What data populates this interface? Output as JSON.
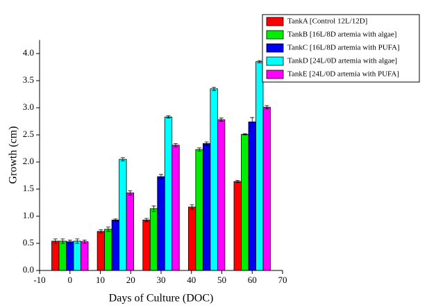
{
  "chart_data": {
    "type": "bar",
    "x_label": "Days of Culture (DOC)",
    "y_label": "Growth (cm)",
    "x": [
      0,
      15,
      30,
      45,
      60
    ],
    "series": [
      {
        "name": "TankA [Control 12L/12D]",
        "color": "#ff0000",
        "values": [
          0.54,
          0.72,
          0.93,
          1.17,
          1.64
        ],
        "errors": [
          0.04,
          0.03,
          0.03,
          0.04,
          0.02
        ]
      },
      {
        "name": "TankB [16L/8D artemia with algae]",
        "color": "#00ee00",
        "values": [
          0.54,
          0.76,
          1.14,
          2.23,
          2.51
        ],
        "errors": [
          0.04,
          0.04,
          0.05,
          0.03,
          0.01
        ]
      },
      {
        "name": "TankC [16L/8D artemia with PUFA]",
        "color": "#0000ee",
        "values": [
          0.53,
          0.93,
          1.73,
          2.34,
          2.74
        ],
        "errors": [
          0.03,
          0.02,
          0.04,
          0.03,
          0.08
        ]
      },
      {
        "name": "TankD [24L/0D artemia with algae]",
        "color": "#00ffff",
        "values": [
          0.54,
          2.05,
          2.83,
          3.35,
          3.85
        ],
        "errors": [
          0.04,
          0.03,
          0.02,
          0.03,
          0.02
        ]
      },
      {
        "name": "TankE [24L/0D artemia with PUFA]",
        "color": "#ff00ff",
        "values": [
          0.53,
          1.43,
          2.31,
          2.78,
          3.01
        ],
        "errors": [
          0.03,
          0.04,
          0.03,
          0.03,
          0.03
        ]
      }
    ],
    "xlim": [
      -10,
      70
    ],
    "xticks": [
      -10,
      0,
      10,
      20,
      30,
      40,
      50,
      60,
      70
    ],
    "ylim": [
      0,
      4.25
    ],
    "yticks": [
      {
        "value": 0,
        "label": "0.0"
      },
      {
        "value": 0.5,
        "label": "0.5"
      },
      {
        "value": 1,
        "label": "1.0"
      },
      {
        "value": 1.5,
        "label": "1.5"
      },
      {
        "value": 2,
        "label": "2.0"
      },
      {
        "value": 2.5,
        "label": "2.5"
      },
      {
        "value": 3,
        "label": "3.0"
      },
      {
        "value": 3.5,
        "label": "3.5"
      },
      {
        "value": 4,
        "label": "4.0"
      }
    ],
    "legend": "upper right"
  }
}
